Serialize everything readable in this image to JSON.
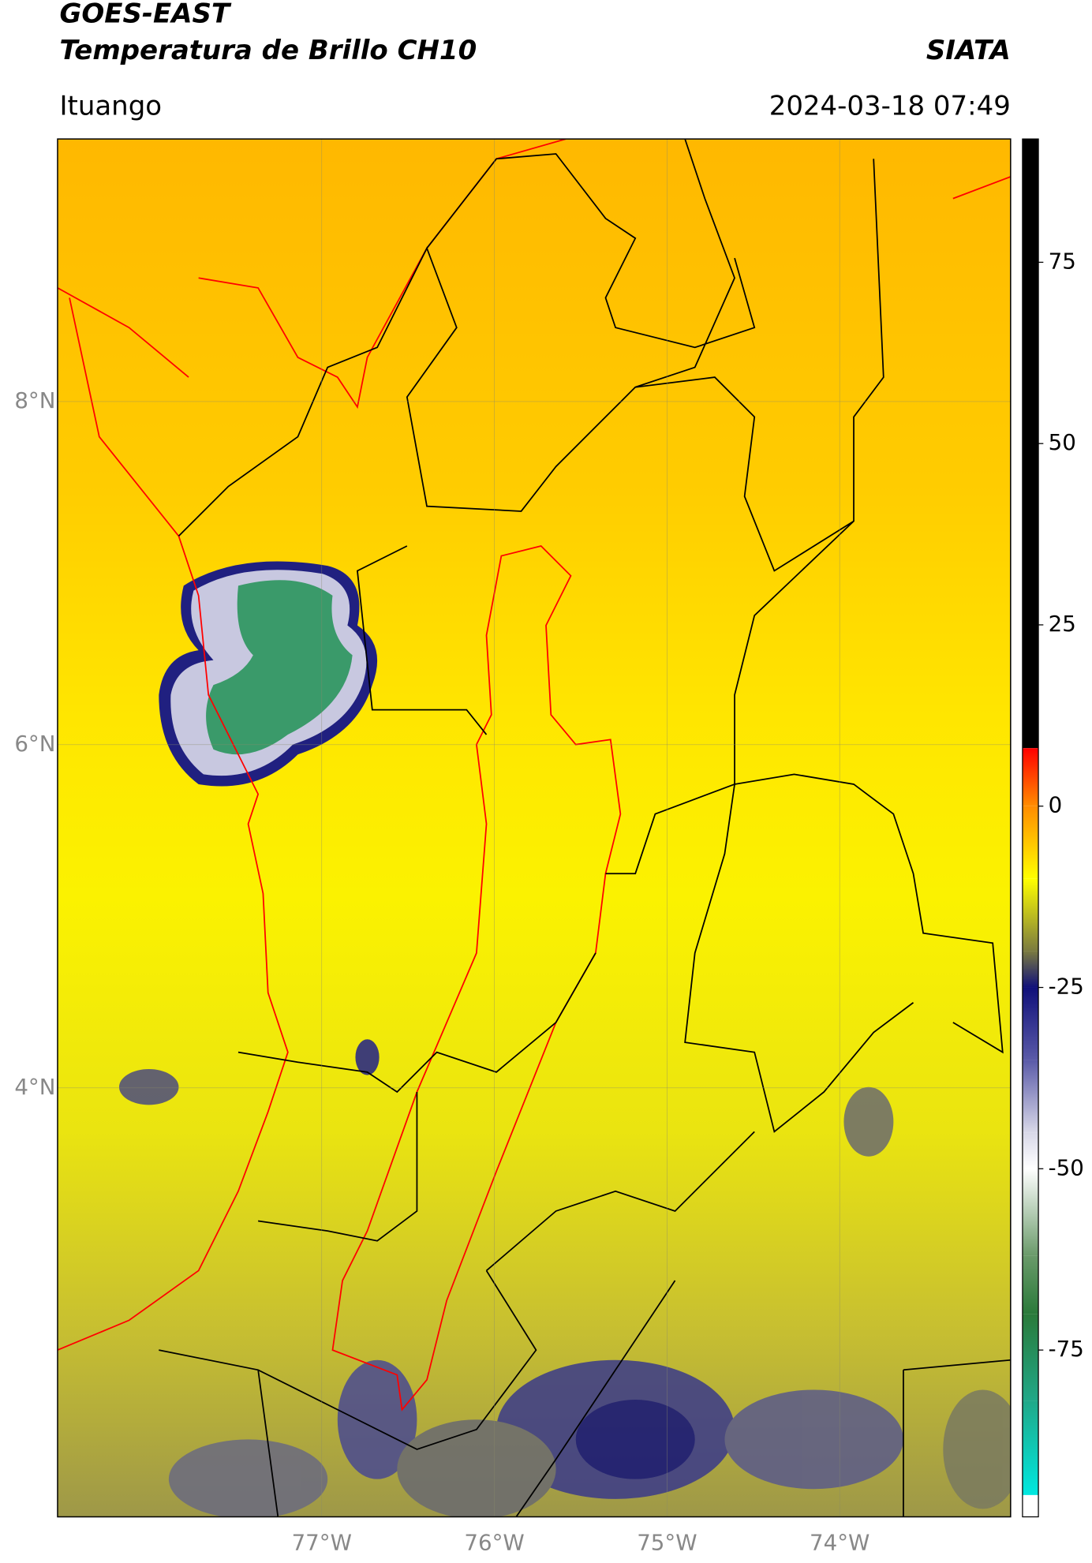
{
  "header": {
    "title": "GOES-EAST",
    "subtitle": "Temperatura de Brillo CH10",
    "source": "SIATA",
    "location": "Ituango",
    "datetime": "2024-03-18 07:49"
  },
  "map": {
    "xlim": [
      -78.53,
      -73.01
    ],
    "ylim": [
      1.5,
      9.53
    ],
    "xticks": [
      {
        "value": -77,
        "label": "77°W"
      },
      {
        "value": -76,
        "label": "76°W"
      },
      {
        "value": -75,
        "label": "75°W"
      },
      {
        "value": -74,
        "label": "74°W"
      }
    ],
    "yticks": [
      {
        "value": 8,
        "label": "8°N"
      },
      {
        "value": 6,
        "label": "6°N"
      },
      {
        "value": 4,
        "label": "4°N"
      }
    ],
    "grid": true
  },
  "colorbar": {
    "lim": [
      -98,
      92
    ],
    "ticks": [
      75,
      50,
      25,
      0,
      -25,
      -50,
      -75
    ],
    "stops": [
      {
        "value": 92,
        "color": "#000000"
      },
      {
        "value": 8,
        "color": "#000000"
      },
      {
        "value": 8,
        "color": "#ff0000"
      },
      {
        "value": 0,
        "color": "#ff8c00"
      },
      {
        "value": -10,
        "color": "#ffff00"
      },
      {
        "value": -20,
        "color": "#7a7a40"
      },
      {
        "value": -25,
        "color": "#10107a"
      },
      {
        "value": -35,
        "color": "#5a5aa8"
      },
      {
        "value": -45,
        "color": "#d8d8e8"
      },
      {
        "value": -50,
        "color": "#ffffff"
      },
      {
        "value": -62,
        "color": "#6a9a6a"
      },
      {
        "value": -70,
        "color": "#2a7a3a"
      },
      {
        "value": -82,
        "color": "#20a888"
      },
      {
        "value": -95,
        "color": "#00e8e0"
      },
      {
        "value": -95,
        "color": "#ffffff"
      },
      {
        "value": -98,
        "color": "#ffffff"
      }
    ]
  }
}
